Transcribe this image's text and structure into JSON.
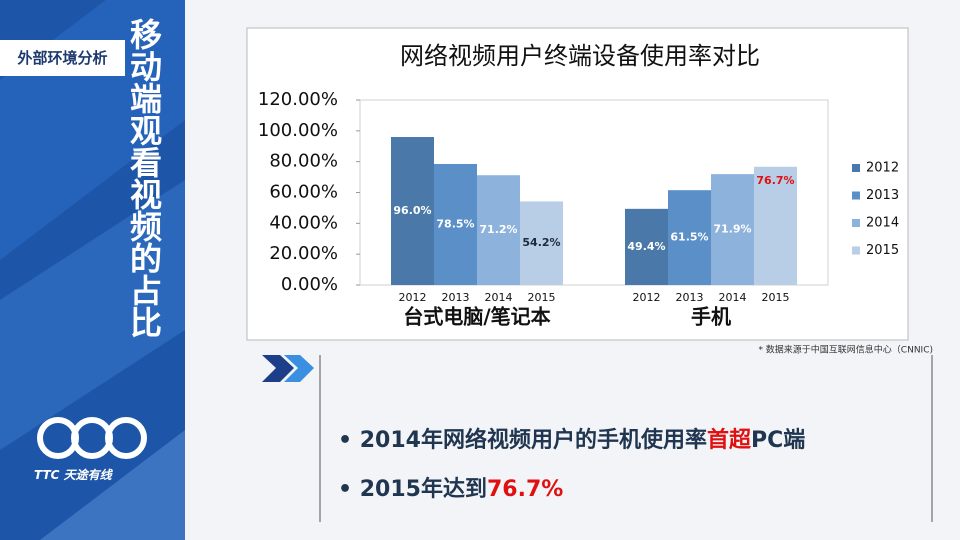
{
  "side_tag": "外部环境分析",
  "side_title": "移动端观看视频的占比",
  "logo": "TTC 天途有线",
  "source_note": "* 数据来源于中国互联网信息中心（CNNIC)",
  "bullets": [
    [
      {
        "text": "2014年网络视频用户的手机使用率",
        "color": "#1f3550"
      },
      {
        "text": "首超",
        "color": "#e01010"
      },
      {
        "text": "PC端",
        "color": "#1f3550"
      }
    ],
    [
      {
        "text": "2015年达到",
        "color": "#1f3550"
      },
      {
        "text": "76.7%",
        "color": "#e01010"
      }
    ]
  ],
  "chart_data": {
    "type": "bar",
    "title": "网络视频用户终端设备使用率对比",
    "categories": [
      "台式电脑/笔记本",
      "手机"
    ],
    "series": [
      {
        "name": "2012",
        "color": "#4a78a8",
        "values": [
          96.0,
          49.4
        ],
        "value_labels": [
          "96.0%",
          "49.4%"
        ],
        "label_colors": [
          "#ffffff",
          "#ffffff"
        ]
      },
      {
        "name": "2013",
        "color": "#5a8fc8",
        "values": [
          78.5,
          61.5
        ],
        "value_labels": [
          "78.5%",
          "61.5%"
        ],
        "label_colors": [
          "#ffffff",
          "#ffffff"
        ]
      },
      {
        "name": "2014",
        "color": "#8db2dc",
        "values": [
          71.2,
          71.9
        ],
        "value_labels": [
          "71.2%",
          "71.9%"
        ],
        "label_colors": [
          "#ffffff",
          "#ffffff"
        ]
      },
      {
        "name": "2015",
        "color": "#b8cde6",
        "values": [
          54.2,
          76.7
        ],
        "value_labels": [
          "54.2%",
          "76.7%"
        ],
        "label_colors": [
          "#1f2a3a",
          "#e01010"
        ]
      }
    ],
    "ylim": [
      0,
      120
    ],
    "yticks": [
      {
        "value": 0,
        "label": "0.00%"
      },
      {
        "value": 20,
        "label": "20.00%"
      },
      {
        "value": 40,
        "label": "40.00%"
      },
      {
        "value": 60,
        "label": "60.00%"
      },
      {
        "value": 80,
        "label": "80.00%"
      },
      {
        "value": 100,
        "label": "100.00%"
      },
      {
        "value": 120,
        "label": "120.00%"
      }
    ],
    "grid": false,
    "legend": "right"
  }
}
